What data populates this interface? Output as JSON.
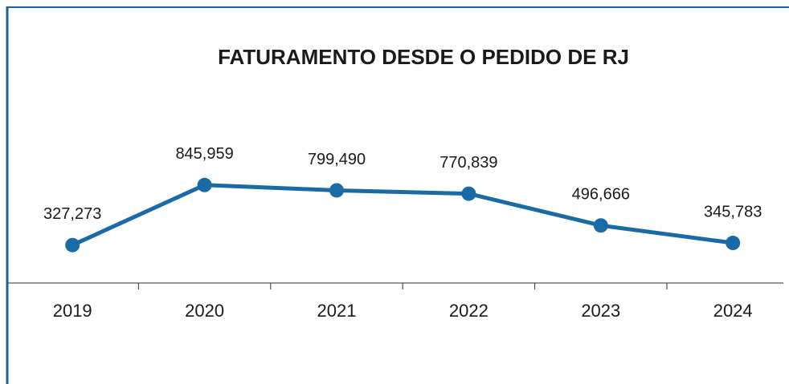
{
  "chart_data": {
    "type": "line",
    "title": "FATURAMENTO DESDE O PEDIDO DE RJ",
    "categories": [
      "2019",
      "2020",
      "2021",
      "2022",
      "2023",
      "2024"
    ],
    "values": [
      327273,
      845959,
      799490,
      770839,
      496666,
      345783
    ],
    "value_labels": [
      "327,273",
      "845,959",
      "799,490",
      "770,839",
      "496,666",
      "345,783"
    ],
    "color": "#1a6aa6",
    "ylim": [
      0,
      2000000
    ]
  }
}
